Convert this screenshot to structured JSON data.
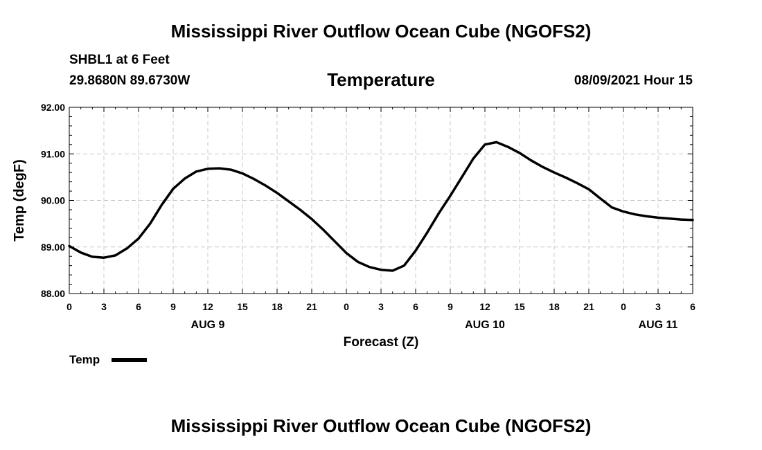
{
  "figure": {
    "title": "Mississippi River Outflow Ocean Cube (NGOFS2)",
    "footer_title": "Mississippi River Outflow Ocean Cube (NGOFS2)",
    "station": "SHBL1 at 6 Feet",
    "coords": "29.8680N  89.6730W",
    "variable": "Temperature",
    "forecast_time": "08/09/2021 Hour 15"
  },
  "chart_data": {
    "type": "line",
    "title": "Temperature",
    "xlabel": "Forecast (Z)",
    "ylabel": "Temp (degF)",
    "xlim": [
      0,
      54
    ],
    "ylim": [
      88,
      92
    ],
    "grid": true,
    "x_ticks": [
      0,
      3,
      6,
      9,
      12,
      15,
      18,
      21,
      24,
      27,
      30,
      33,
      36,
      39,
      42,
      45,
      48,
      51,
      54
    ],
    "x_tick_labels": [
      "0",
      "3",
      "6",
      "9",
      "12",
      "15",
      "18",
      "21",
      "0",
      "3",
      "6",
      "9",
      "12",
      "15",
      "18",
      "21",
      "0",
      "3",
      "6"
    ],
    "y_ticks": [
      88,
      89,
      90,
      91,
      92
    ],
    "y_tick_labels": [
      "88.00",
      "89.00",
      "90.00",
      "91.00",
      "92.00"
    ],
    "date_labels": [
      {
        "x": 12,
        "label": "AUG 9"
      },
      {
        "x": 36,
        "label": "AUG 10"
      },
      {
        "x": 51,
        "label": "AUG 11"
      }
    ],
    "legend": {
      "label": "Temp",
      "placement": "bottom-left"
    },
    "series": [
      {
        "name": "Temp",
        "x": [
          0,
          1,
          2,
          3,
          4,
          5,
          6,
          7,
          8,
          9,
          10,
          11,
          12,
          13,
          14,
          15,
          16,
          17,
          18,
          19,
          20,
          21,
          22,
          23,
          24,
          25,
          26,
          27,
          28,
          29,
          30,
          31,
          32,
          33,
          34,
          35,
          36,
          37,
          38,
          39,
          40,
          41,
          42,
          43,
          44,
          45,
          46,
          47,
          48,
          49,
          50,
          51,
          52,
          53,
          54
        ],
        "values": [
          89.02,
          88.88,
          88.79,
          88.77,
          88.82,
          88.97,
          89.18,
          89.5,
          89.9,
          90.25,
          90.47,
          90.62,
          90.68,
          90.69,
          90.66,
          90.58,
          90.46,
          90.32,
          90.16,
          89.98,
          89.8,
          89.6,
          89.37,
          89.12,
          88.87,
          88.68,
          88.57,
          88.51,
          88.49,
          88.6,
          88.92,
          89.31,
          89.72,
          90.1,
          90.5,
          90.9,
          91.2,
          91.25,
          91.15,
          91.02,
          90.86,
          90.72,
          90.6,
          90.49,
          90.37,
          90.24,
          90.04,
          89.85,
          89.76,
          89.7,
          89.66,
          89.63,
          89.61,
          89.59,
          89.58
        ]
      }
    ]
  }
}
